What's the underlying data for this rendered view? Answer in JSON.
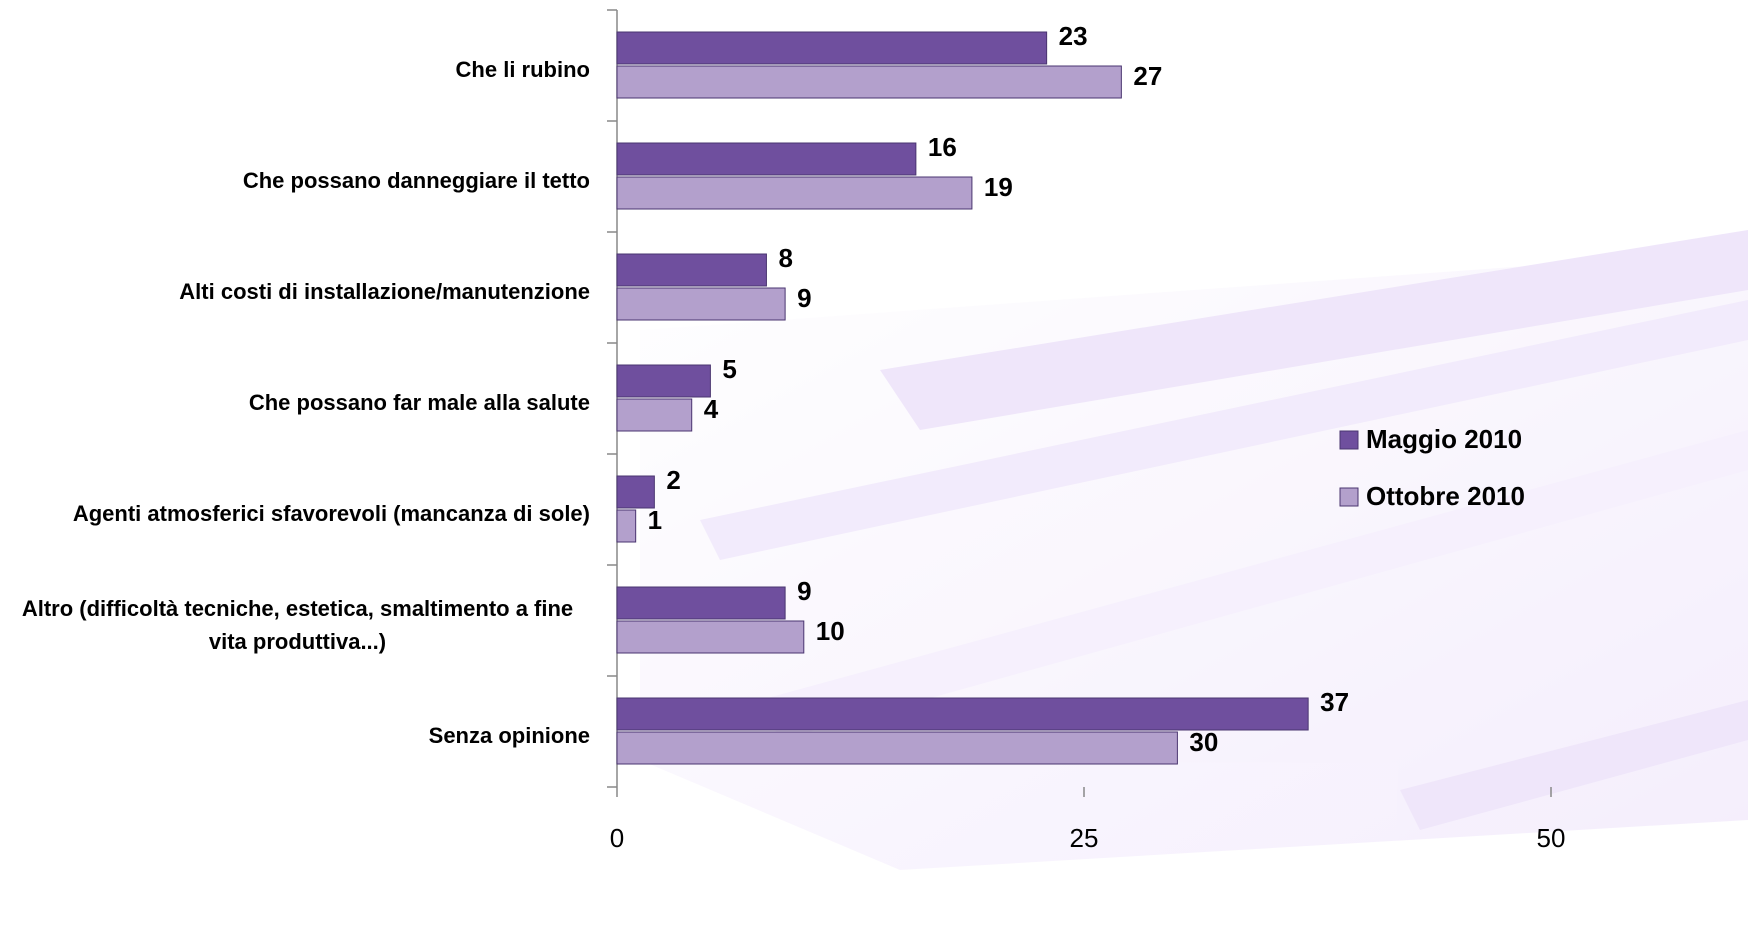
{
  "chart_data": {
    "type": "bar",
    "orientation": "horizontal",
    "categories": [
      "Che li rubino",
      "Che possano danneggiare il tetto",
      "Alti costi di installazione/manutenzione",
      "Che possano far male alla salute",
      "Agenti atmosferici sfavorevoli (mancanza di sole)",
      "Altro (difficoltà tecniche, estetica, smaltimento a fine vita produttiva...)",
      "Senza opinione"
    ],
    "series": [
      {
        "name": "Maggio 2010",
        "color": "#6f4f9e",
        "values": [
          23,
          16,
          8,
          5,
          2,
          9,
          37
        ]
      },
      {
        "name": "Ottobre 2010",
        "color": "#b3a0cc",
        "values": [
          27,
          19,
          9,
          4,
          1,
          10,
          30
        ]
      }
    ],
    "xlim": [
      0,
      50
    ],
    "xticks": [
      0,
      25,
      50
    ],
    "legend": "right"
  }
}
